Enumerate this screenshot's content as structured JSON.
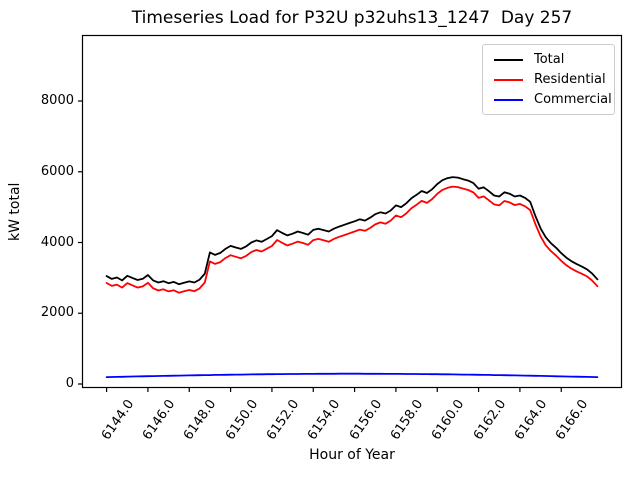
{
  "figure": {
    "background": "#ffffff",
    "frame_color": "#000000",
    "legend_border_color": "#cccccc"
  },
  "chart_data": {
    "type": "line",
    "title": "Timeseries Load for P32U p32uhs13_1247  Day 257",
    "xlabel": "Hour of Year",
    "ylabel": "kW total",
    "grid": false,
    "x_start": 6144.0,
    "x_step": 0.25,
    "xlim": [
      6142.81,
      6168.94
    ],
    "ylim": [
      -113,
      9866
    ],
    "xticks": [
      6144,
      6146,
      6148,
      6150,
      6152,
      6154,
      6156,
      6158,
      6160,
      6162,
      6164,
      6166
    ],
    "xtick_labels": [
      "6144.0",
      "6146.0",
      "6148.0",
      "6150.0",
      "6152.0",
      "6154.0",
      "6156.0",
      "6158.0",
      "6160.0",
      "6162.0",
      "6164.0",
      "6166.0"
    ],
    "yticks": [
      0,
      2000,
      4000,
      6000,
      8000
    ],
    "ytick_labels": [
      "0",
      "2000",
      "4000",
      "6000",
      "8000"
    ],
    "legend": {
      "position": "upper right",
      "entries": [
        "Total",
        "Residential",
        "Commercial"
      ]
    },
    "series": [
      {
        "name": "Total",
        "color": "#000000",
        "values": [
          3050,
          2970,
          3010,
          2930,
          3060,
          3000,
          2940,
          2975,
          3080,
          2930,
          2870,
          2905,
          2850,
          2885,
          2820,
          2860,
          2900,
          2870,
          2950,
          3120,
          3720,
          3650,
          3705,
          3820,
          3905,
          3860,
          3820,
          3890,
          4000,
          4060,
          4020,
          4100,
          4180,
          4350,
          4270,
          4200,
          4250,
          4310,
          4270,
          4220,
          4355,
          4390,
          4350,
          4310,
          4390,
          4450,
          4500,
          4550,
          4600,
          4655,
          4620,
          4700,
          4800,
          4855,
          4820,
          4905,
          5050,
          5000,
          5105,
          5250,
          5350,
          5455,
          5400,
          5505,
          5650,
          5760,
          5820,
          5850,
          5835,
          5790,
          5750,
          5680,
          5520,
          5560,
          5450,
          5330,
          5300,
          5420,
          5380,
          5300,
          5330,
          5260,
          5150,
          4750,
          4400,
          4150,
          3980,
          3850,
          3700,
          3570,
          3470,
          3390,
          3320,
          3240,
          3120,
          2960
        ]
      },
      {
        "name": "Residential",
        "color": "#ff0000",
        "values": [
          2855,
          2772,
          2809,
          2726,
          2852,
          2789,
          2726,
          2758,
          2860,
          2707,
          2644,
          2676,
          2618,
          2650,
          2582,
          2620,
          2657,
          2624,
          2702,
          2869,
          3467,
          3394,
          3447,
          3560,
          3642,
          3595,
          3553,
          3621,
          3729,
          3787,
          3746,
          3824,
          3902,
          4071,
          3989,
          3918,
          3967,
          4026,
          3985,
          3934,
          4068,
          4102,
          4062,
          4021,
          4101,
          4160,
          4210,
          4260,
          4310,
          4365,
          4331,
          4411,
          4511,
          4567,
          4533,
          4618,
          4764,
          4715,
          4821,
          4967,
          5068,
          5175,
          5121,
          5228,
          5374,
          5486,
          5547,
          5579,
          5566,
          5523,
          5485,
          5417,
          5260,
          5302,
          5194,
          5077,
          5049,
          5172,
          5135,
          5057,
          5090,
          5023,
          4916,
          4519,
          4172,
          3925,
          3758,
          3631,
          3484,
          3357,
          3260,
          3183,
          3116,
          3039,
          2922,
          2765
        ]
      },
      {
        "name": "Commercial",
        "color": "#0000ff",
        "values": [
          195,
          198,
          201,
          204,
          208,
          211,
          214,
          217,
          220,
          223,
          226,
          229,
          232,
          235,
          238,
          240,
          243,
          246,
          248,
          251,
          253,
          256,
          258,
          260,
          263,
          265,
          267,
          269,
          271,
          273,
          274,
          276,
          278,
          279,
          281,
          282,
          283,
          284,
          285,
          286,
          287,
          288,
          288,
          289,
          289,
          290,
          290,
          290,
          290,
          290,
          289,
          289,
          289,
          288,
          287,
          287,
          286,
          285,
          284,
          283,
          282,
          280,
          279,
          277,
          276,
          274,
          273,
          271,
          269,
          267,
          265,
          263,
          260,
          258,
          256,
          253,
          251,
          248,
          245,
          243,
          240,
          237,
          234,
          231,
          228,
          225,
          222,
          219,
          216,
          213,
          210,
          207,
          204,
          201,
          198,
          195
        ]
      }
    ]
  }
}
